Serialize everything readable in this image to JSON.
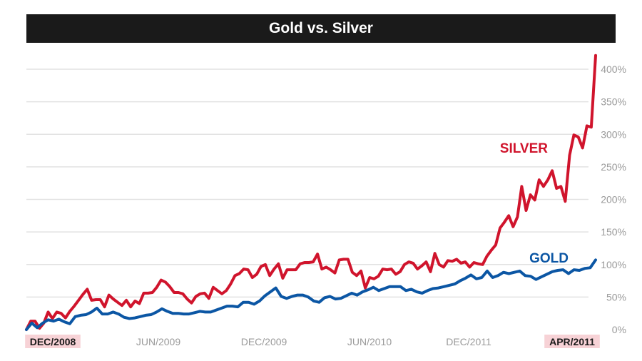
{
  "chart_data": {
    "type": "line",
    "title": "Gold vs. Silver",
    "xlabel": "",
    "ylabel": "",
    "ylim": [
      0,
      440
    ],
    "y_ticks": [
      "0%",
      "50%",
      "100%",
      "150%",
      "200%",
      "250%",
      "300%",
      "350%",
      "400%"
    ],
    "x_tick_labels": [
      {
        "label": "DEC/2008",
        "highlight": true
      },
      {
        "label": "JUN/2009",
        "highlight": false
      },
      {
        "label": "DEC/2009",
        "highlight": false
      },
      {
        "label": "JUN/2010",
        "highlight": false
      },
      {
        "label": "DEC/2011",
        "highlight": false
      },
      {
        "label": "APR/2011",
        "highlight": true
      }
    ],
    "grid": true,
    "series": [
      {
        "name": "SILVER",
        "color": "#d0142c",
        "values": [
          0,
          13,
          13,
          2,
          10,
          27,
          17,
          27,
          25,
          18,
          28,
          36,
          45,
          54,
          62,
          45,
          46,
          46,
          35,
          53,
          47,
          42,
          37,
          45,
          35,
          44,
          40,
          56,
          56,
          57,
          65,
          76,
          73,
          66,
          57,
          57,
          55,
          47,
          41,
          51,
          55,
          56,
          48,
          65,
          60,
          55,
          60,
          70,
          83,
          86,
          93,
          92,
          80,
          85,
          97,
          100,
          83,
          93,
          101,
          79,
          92,
          92,
          92,
          101,
          103,
          103,
          104,
          116,
          93,
          96,
          92,
          87,
          107,
          108,
          108,
          88,
          83,
          90,
          64,
          80,
          78,
          82,
          93,
          92,
          93,
          85,
          89,
          100,
          104,
          102,
          93,
          98,
          104,
          89,
          117,
          100,
          96,
          106,
          105,
          108,
          102,
          104,
          96,
          103,
          101,
          100,
          113,
          122,
          130,
          156,
          165,
          175,
          158,
          173,
          220,
          183,
          207,
          199,
          230,
          220,
          230,
          244,
          217,
          220,
          197,
          268,
          299,
          296,
          279,
          313,
          311,
          421
        ],
        "x_frac": [
          0.0,
          0.0077,
          0.0155,
          0.0232,
          0.031,
          0.0387,
          0.0465,
          0.0542,
          0.0619,
          0.0697,
          0.0774,
          0.0852,
          0.0929,
          0.1006,
          0.1084,
          0.1161,
          0.1239,
          0.1316,
          0.1394,
          0.1471,
          0.1548,
          0.1626,
          0.1703,
          0.1781,
          0.1858,
          0.1935,
          0.2013,
          0.209,
          0.2168,
          0.2245,
          0.2323,
          0.24,
          0.2477,
          0.2555,
          0.2632,
          0.271,
          0.2787,
          0.2865,
          0.2942,
          0.3019,
          0.3097,
          0.3174,
          0.3252,
          0.3329,
          0.3406,
          0.3484,
          0.3561,
          0.3639,
          0.3716,
          0.3794,
          0.3871,
          0.3948,
          0.4026,
          0.4103,
          0.4181,
          0.4258,
          0.4335,
          0.4413,
          0.449,
          0.4568,
          0.4645,
          0.4723,
          0.48,
          0.4877,
          0.4955,
          0.5032,
          0.511,
          0.5187,
          0.5265,
          0.5342,
          0.5419,
          0.5497,
          0.5574,
          0.5652,
          0.5729,
          0.5806,
          0.5884,
          0.5961,
          0.6039,
          0.6116,
          0.6194,
          0.6271,
          0.6348,
          0.6426,
          0.6503,
          0.6581,
          0.6658,
          0.6735,
          0.6813,
          0.689,
          0.6968,
          0.7045,
          0.7123,
          0.72,
          0.7277,
          0.7355,
          0.7432,
          0.751,
          0.7587,
          0.7665,
          0.7742,
          0.7819,
          0.7897,
          0.7974,
          0.8052,
          0.8129,
          0.8206,
          0.8284,
          0.8361,
          0.8439,
          0.8516,
          0.8594,
          0.8671,
          0.8748,
          0.8826,
          0.8903,
          0.8981,
          0.9058,
          0.9135,
          0.9213,
          0.929,
          0.9368,
          0.9445,
          0.9523,
          0.96,
          0.9677,
          0.9755,
          0.9832,
          0.991,
          0.9987,
          1.0,
          1.0
        ]
      },
      {
        "name": "GOLD",
        "color": "#0b56a4",
        "values": [
          0,
          10,
          3,
          10,
          15,
          13,
          16,
          12,
          9,
          20,
          22,
          23,
          27,
          33,
          24,
          24,
          27,
          24,
          19,
          17,
          18,
          20,
          22,
          23,
          27,
          32,
          28,
          25,
          25,
          24,
          24,
          26,
          28,
          27,
          27,
          30,
          33,
          36,
          36,
          35,
          42,
          42,
          39,
          44,
          52,
          58,
          64,
          51,
          48,
          51,
          53,
          53,
          50,
          44,
          42,
          49,
          51,
          47,
          48,
          52,
          56,
          53,
          58,
          61,
          65,
          60,
          63,
          66,
          66,
          66,
          60,
          62,
          58,
          56,
          60,
          63,
          64,
          66,
          68,
          70,
          75,
          79,
          84,
          78,
          80,
          90,
          80,
          83,
          88,
          86,
          88,
          90,
          83,
          82,
          77,
          81,
          85,
          89,
          91,
          92,
          86,
          92,
          91,
          94,
          95,
          107
        ],
        "x_frac": [
          0.0,
          0.0115,
          0.023,
          0.0345,
          0.046,
          0.0575,
          0.069,
          0.0805,
          0.092,
          0.1034,
          0.1149,
          0.1264,
          0.1379,
          0.1494,
          0.1609,
          0.1724,
          0.1839,
          0.1954,
          0.2069,
          0.2184,
          0.2299,
          0.2414,
          0.2529,
          0.2644,
          0.2759,
          0.2874,
          0.2989,
          0.3103,
          0.3218,
          0.3333,
          0.3448,
          0.3563,
          0.3678,
          0.3793,
          0.3908,
          0.4023,
          0.4138,
          0.4253,
          0.4368,
          0.4483,
          0.4598,
          0.4713,
          0.4828,
          0.4943,
          0.5057,
          0.5172,
          0.5287,
          0.5402,
          0.5517,
          0.5632,
          0.5747,
          0.5862,
          0.5977,
          0.6092,
          0.6207,
          0.6322,
          0.6437,
          0.6552,
          0.6667,
          0.6782,
          0.6897,
          0.7011,
          0.7126,
          0.7241,
          0.7356,
          0.7471,
          0.7586,
          0.7701,
          0.7816,
          0.7931,
          0.8046,
          0.8161,
          0.8276,
          0.8391,
          0.8506,
          0.8621,
          0.8736,
          0.8851,
          0.8966,
          0.908,
          0.9195,
          0.931,
          0.9425,
          0.954,
          0.9655,
          0.977,
          0.9885,
          1.0,
          1.0,
          1.0,
          1.0,
          1.0,
          1.0,
          1.0,
          1.0,
          1.0,
          1.0,
          1.0,
          1.0,
          1.0,
          1.0,
          1.0,
          1.0,
          1.0,
          1.0,
          1.0
        ]
      }
    ]
  }
}
